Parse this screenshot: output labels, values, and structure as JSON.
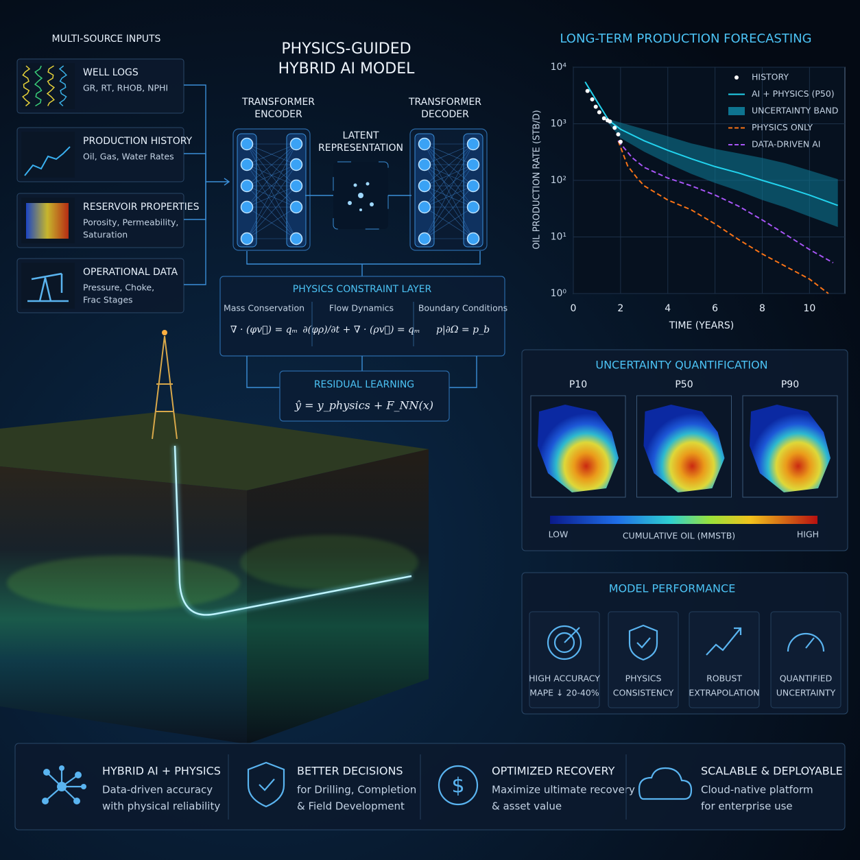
{
  "inputs": {
    "title": "MULTI-SOURCE INPUTS",
    "items": [
      {
        "title": "WELL LOGS",
        "detail": [
          "GR, RT, RHOB, NPHI"
        ]
      },
      {
        "title": "PRODUCTION HISTORY",
        "detail": [
          "Oil, Gas, Water Rates"
        ]
      },
      {
        "title": "RESERVOIR PROPERTIES",
        "detail": [
          "Porosity, Permeability,",
          "Saturation"
        ]
      },
      {
        "title": "OPERATIONAL DATA",
        "detail": [
          "Pressure, Choke,",
          "Frac Stages"
        ]
      }
    ]
  },
  "model": {
    "title": [
      "PHYSICS-GUIDED",
      "HYBRID AI MODEL"
    ],
    "encoder": [
      "TRANSFORMER",
      "ENCODER"
    ],
    "latent": [
      "LATENT",
      "REPRESENTATION"
    ],
    "decoder": [
      "TRANSFORMER",
      "DECODER"
    ],
    "constraint": {
      "title": "PHYSICS CONSTRAINT LAYER",
      "terms": [
        {
          "name": "Mass Conservation",
          "equation": "∇ · (φv⃗) = qₘ"
        },
        {
          "name": "Flow Dynamics",
          "equation": "∂(φρ)/∂t + ∇ · (ρv⃗) = qₘ"
        },
        {
          "name": "Boundary Conditions",
          "equation": "p|∂Ω = p_b"
        }
      ]
    },
    "residual": {
      "title": "RESIDUAL LEARNING",
      "equation": "ŷ = y_physics + F_NN(x)"
    }
  },
  "chart_data": {
    "type": "line",
    "title": "LONG-TERM PRODUCTION FORECASTING",
    "x_label": "TIME (YEARS)",
    "y_label": "OIL PRODUCTION RATE (STB/D)",
    "log_y": true,
    "grid": true,
    "legend": "upper right",
    "xlim": [
      0,
      11.5
    ],
    "xticks": [
      0,
      2,
      4,
      6,
      8,
      10
    ],
    "ylim": [
      1,
      10000
    ],
    "yticks": [
      {
        "value": 1,
        "label": "10⁰"
      },
      {
        "value": 10,
        "label": "10¹"
      },
      {
        "value": 100,
        "label": "10²"
      },
      {
        "value": 1000,
        "label": "10³"
      },
      {
        "value": 10000,
        "label": "10⁴"
      }
    ],
    "series": [
      {
        "name": "HISTORY",
        "kind": "points",
        "color": "#ffffff",
        "x": [
          0.6,
          0.8,
          0.95,
          1.1,
          1.3,
          1.45,
          1.55,
          1.75,
          1.9,
          2.0
        ],
        "values": [
          3800,
          2700,
          2000,
          1600,
          1250,
          1150,
          1100,
          850,
          650,
          480
        ]
      },
      {
        "name": "AI + PHYSICS (P50)",
        "kind": "line",
        "color": "#22d3ee",
        "x": [
          0.5,
          1,
          1.5,
          2,
          3,
          4,
          5,
          6,
          7,
          8,
          9,
          10,
          11.2
        ],
        "values": [
          5500,
          2500,
          1150,
          800,
          500,
          340,
          240,
          175,
          135,
          100,
          75,
          55,
          36
        ]
      },
      {
        "name": "UNCERTAINTY BAND",
        "kind": "band",
        "color": "#0e7490",
        "x": [
          1.5,
          2,
          3,
          4,
          5,
          6,
          7,
          8,
          9,
          10,
          11.2
        ],
        "low": [
          1000,
          560,
          320,
          200,
          130,
          90,
          65,
          45,
          33,
          23,
          15
        ],
        "high": [
          1200,
          1050,
          800,
          600,
          450,
          360,
          300,
          250,
          200,
          150,
          105
        ]
      },
      {
        "name": "PHYSICS ONLY",
        "kind": "line",
        "dash": true,
        "color": "#f97316",
        "x": [
          1.9,
          2.3,
          2.7,
          3,
          3.5,
          4,
          5,
          6,
          7,
          8,
          9,
          10,
          10.8
        ],
        "values": [
          500,
          180,
          110,
          80,
          60,
          45,
          30,
          17,
          9,
          5,
          3,
          1.8,
          1.0
        ]
      },
      {
        "name": "DATA-DRIVEN AI",
        "kind": "line",
        "dash": true,
        "color": "#a855f7",
        "x": [
          1.9,
          2.5,
          3,
          4,
          5,
          6,
          7,
          8,
          9,
          10,
          11
        ],
        "values": [
          500,
          250,
          170,
          110,
          80,
          55,
          35,
          20,
          11,
          6,
          3.5
        ]
      }
    ]
  },
  "uncertainty": {
    "title": "UNCERTAINTY QUANTIFICATION",
    "maps": [
      "P10",
      "P50",
      "P90"
    ],
    "scale": {
      "low": "LOW",
      "title": "CUMULATIVE OIL (MMSTB)",
      "high": "HIGH"
    }
  },
  "performance": {
    "title": "MODEL PERFORMANCE",
    "items": [
      [
        "HIGH ACCURACY",
        "MAPE ↓ 20-40%"
      ],
      [
        "PHYSICS",
        "CONSISTENCY"
      ],
      [
        "ROBUST",
        "EXTRAPOLATION"
      ],
      [
        "QUANTIFIED",
        "UNCERTAINTY"
      ]
    ]
  },
  "benefits": [
    {
      "title": "HYBRID AI + PHYSICS",
      "lines": [
        "Data-driven accuracy",
        "with physical reliability"
      ]
    },
    {
      "title": "BETTER DECISIONS",
      "lines": [
        "for Drilling, Completion",
        "& Field Development"
      ]
    },
    {
      "title": "OPTIMIZED RECOVERY",
      "lines": [
        "Maximize ultimate recovery",
        "& asset value"
      ]
    },
    {
      "title": "SCALABLE & DEPLOYABLE",
      "lines": [
        "Cloud-native platform",
        "for enterprise use"
      ]
    }
  ]
}
